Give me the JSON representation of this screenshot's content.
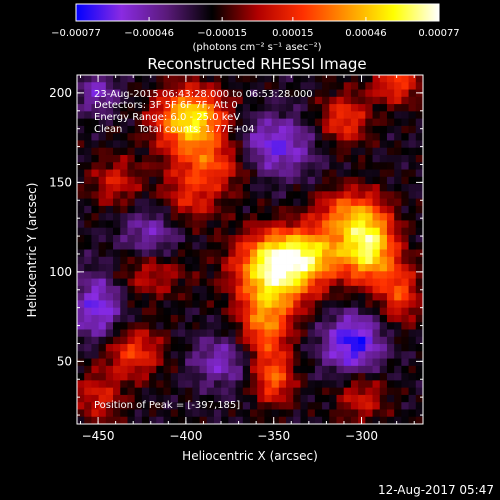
{
  "chart_data": {
    "type": "heatmap",
    "title": "Reconstructed RHESSI Image",
    "xlabel": "Heliocentric X (arcsec)",
    "ylabel": "Heliocentric Y (arcsec)",
    "xlim": [
      -462,
      -265
    ],
    "ylim": [
      15,
      210
    ],
    "xticks": [
      -450,
      -400,
      -350,
      -300
    ],
    "xtick_labels": [
      "−450",
      "−400",
      "−350",
      "−300"
    ],
    "yticks": [
      50,
      100,
      150,
      200
    ],
    "ytick_labels": [
      "50",
      "100",
      "150",
      "200"
    ],
    "colorbar": {
      "range": [
        -0.00077,
        0.00077
      ],
      "ticks": [
        -0.00077,
        -0.00046,
        -0.00015,
        0.00015,
        0.00046,
        0.00077
      ],
      "tick_labels": [
        "−0.00077",
        "−0.00046",
        "−0.00015",
        "0.00015",
        "0.00046",
        "0.00077"
      ],
      "unit_label": "(photons cm⁻² s⁻¹ asec⁻²)",
      "colors": [
        "#0000ff",
        "#8a2be2",
        "#5a1a7a",
        "#000000",
        "#b00000",
        "#ff3000",
        "#ff9900",
        "#ffff00",
        "#ffffff"
      ]
    },
    "annotations": [
      "23-Aug-2015 06:43:28.000 to 06:53:28.000",
      "Detectors: 3F 5F 6F 7F, Att 0",
      "Energy Range: 6.0 - 25.0 keV",
      "Clean     Total counts: 1.77E+04"
    ],
    "peak_label": "Position of Peak = [-397,185]",
    "peak": [
      -397,
      185
    ],
    "grid": false,
    "blobs": [
      {
        "x": -348,
        "y": 100,
        "amp": 0.0008,
        "sx": 16,
        "sy": 14
      },
      {
        "x": -330,
        "y": 110,
        "amp": 0.00055,
        "sx": 20,
        "sy": 10
      },
      {
        "x": -295,
        "y": 115,
        "amp": 0.00075,
        "sx": 10,
        "sy": 15
      },
      {
        "x": -310,
        "y": 132,
        "amp": 0.00045,
        "sx": 12,
        "sy": 10
      },
      {
        "x": -355,
        "y": 70,
        "amp": 0.0005,
        "sx": 10,
        "sy": 14
      },
      {
        "x": -350,
        "y": 40,
        "amp": 0.00045,
        "sx": 8,
        "sy": 10
      },
      {
        "x": -278,
        "y": 88,
        "amp": 0.0004,
        "sx": 8,
        "sy": 12
      },
      {
        "x": -397,
        "y": 185,
        "amp": 0.0008,
        "sx": 14,
        "sy": 12
      },
      {
        "x": -385,
        "y": 160,
        "amp": 0.0004,
        "sx": 16,
        "sy": 10
      },
      {
        "x": -398,
        "y": 140,
        "amp": 0.0003,
        "sx": 12,
        "sy": 10
      },
      {
        "x": -440,
        "y": 150,
        "amp": 0.0003,
        "sx": 10,
        "sy": 10
      },
      {
        "x": -420,
        "y": 100,
        "amp": 0.0003,
        "sx": 14,
        "sy": 10
      },
      {
        "x": -430,
        "y": 55,
        "amp": 0.0004,
        "sx": 12,
        "sy": 10
      },
      {
        "x": -450,
        "y": 30,
        "amp": 0.0003,
        "sx": 10,
        "sy": 10
      },
      {
        "x": -310,
        "y": 185,
        "amp": 0.0004,
        "sx": 10,
        "sy": 10
      },
      {
        "x": -280,
        "y": 205,
        "amp": 0.0004,
        "sx": 10,
        "sy": 8
      },
      {
        "x": -300,
        "y": 30,
        "amp": 0.0003,
        "sx": 10,
        "sy": 10
      },
      {
        "x": -420,
        "y": 120,
        "amp": -0.0003,
        "sx": 12,
        "sy": 12
      },
      {
        "x": -305,
        "y": 60,
        "amp": -0.0005,
        "sx": 12,
        "sy": 12
      },
      {
        "x": -350,
        "y": 170,
        "amp": -0.0004,
        "sx": 16,
        "sy": 12
      },
      {
        "x": -450,
        "y": 80,
        "amp": -0.0004,
        "sx": 10,
        "sy": 14
      },
      {
        "x": -380,
        "y": 50,
        "amp": -0.0003,
        "sx": 12,
        "sy": 10
      },
      {
        "x": -450,
        "y": 200,
        "amp": -0.0003,
        "sx": 8,
        "sy": 8
      }
    ]
  },
  "footer": {
    "timestamp": "12-Aug-2017 05:47"
  }
}
